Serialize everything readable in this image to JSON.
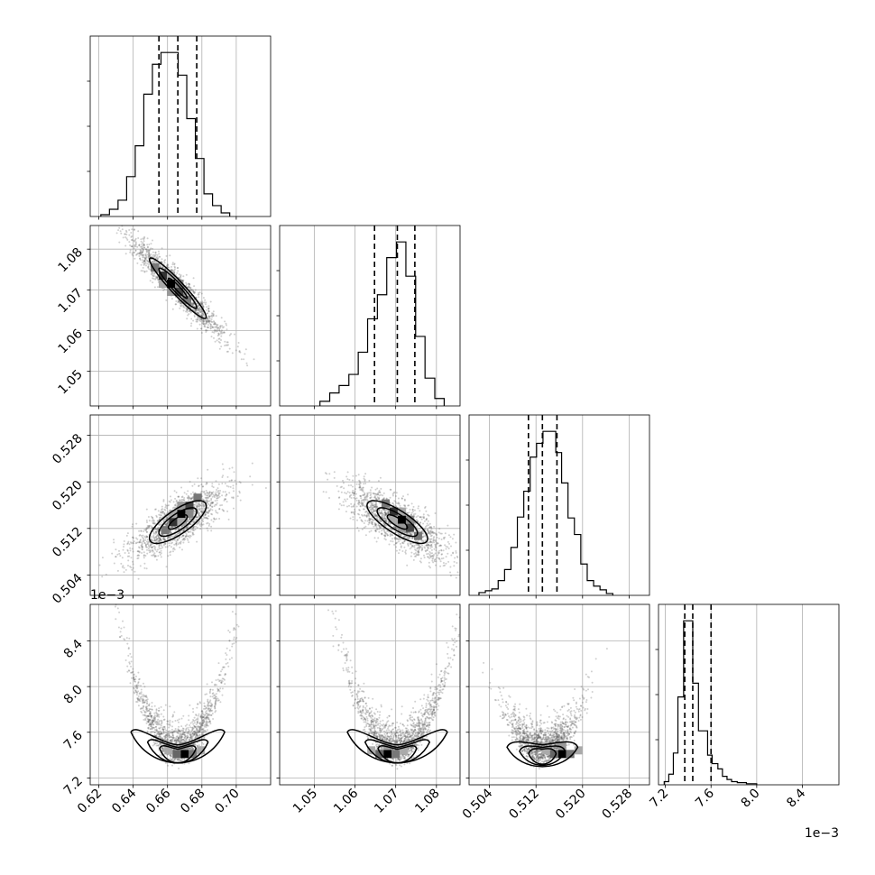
{
  "chart_data": {
    "type": "corner",
    "parameters": [
      {
        "range": [
          0.615,
          0.72
        ],
        "ticks": [
          0.62,
          0.64,
          0.66,
          0.68,
          0.7
        ],
        "tick_labels": [
          "0.62",
          "0.64",
          "0.66",
          "0.68",
          "0.70"
        ],
        "quantiles": [
          0.655,
          0.666,
          0.677
        ],
        "offset_label": ""
      },
      {
        "range": [
          1.0415,
          1.0858
        ],
        "ticks": [
          1.05,
          1.06,
          1.07,
          1.08
        ],
        "tick_labels": [
          "1.05",
          "1.06",
          "1.07",
          "1.08"
        ],
        "quantiles": [
          1.0648,
          1.0704,
          1.0747
        ],
        "offset_label": ""
      },
      {
        "range": [
          0.5005,
          0.5315
        ],
        "ticks": [
          0.504,
          0.512,
          0.52,
          0.528
        ],
        "tick_labels": [
          "0.504",
          "0.512",
          "0.520",
          "0.528"
        ],
        "quantiles": [
          0.5107,
          0.5131,
          0.5156
        ],
        "offset_label": ""
      },
      {
        "range": [
          7.14,
          8.72
        ],
        "ticks": [
          7.2,
          7.6,
          8.0,
          8.4
        ],
        "tick_labels": [
          "7.2",
          "7.6",
          "8.0",
          "8.4"
        ],
        "quantiles": [
          7.37,
          7.44,
          7.6
        ],
        "offset_label": "1e−3"
      }
    ],
    "histograms": [
      {
        "bin_edges": [
          0.6212,
          0.6262,
          0.6312,
          0.6362,
          0.6412,
          0.6462,
          0.6512,
          0.6562,
          0.6612,
          0.6662,
          0.6712,
          0.6762,
          0.6812,
          0.6862,
          0.6912,
          0.6962
        ],
        "counts": [
          2,
          8,
          18,
          44,
          78,
          135,
          168,
          181,
          181,
          156,
          108,
          64,
          25,
          12,
          4
        ]
      },
      {
        "bin_edges": [
          1.0514,
          1.0538,
          1.0561,
          1.0585,
          1.0608,
          1.0631,
          1.0655,
          1.0678,
          1.0702,
          1.0725,
          1.0749,
          1.0772,
          1.0796,
          1.0819
        ],
        "counts": [
          5,
          14,
          22,
          34,
          58,
          94,
          120,
          160,
          177,
          140,
          75,
          30,
          8
        ]
      },
      {
        "bin_edges": [
          0.5022,
          0.5033,
          0.5044,
          0.5055,
          0.5066,
          0.5077,
          0.5088,
          0.5099,
          0.511,
          0.5121,
          0.5132,
          0.5143,
          0.5154,
          0.5164,
          0.5175,
          0.5186,
          0.5197,
          0.5208,
          0.5219,
          0.523,
          0.5241,
          0.5252
        ],
        "counts": [
          3,
          5,
          7,
          16,
          28,
          52,
          85,
          113,
          150,
          165,
          178,
          178,
          155,
          122,
          84,
          66,
          34,
          16,
          10,
          6,
          2
        ]
      },
      {
        "bin_edges": [
          7.19,
          7.23,
          7.27,
          7.31,
          7.36,
          7.4,
          7.44,
          7.49,
          7.53,
          7.57,
          7.61,
          7.66,
          7.7,
          7.74,
          7.78,
          7.83,
          7.87,
          7.91,
          7.96,
          8.0
        ],
        "counts": [
          3,
          10,
          30,
          83,
          155,
          155,
          96,
          51,
          51,
          28,
          20,
          15,
          8,
          5,
          3,
          2,
          2,
          1,
          1
        ]
      }
    ],
    "contours_2d": [
      {
        "x": 0,
        "y": 1,
        "correlation": -0.95,
        "peak": [
          0.662,
          1.0715
        ]
      },
      {
        "x": 0,
        "y": 2,
        "correlation": 0.75,
        "peak": [
          0.668,
          0.5145
        ]
      },
      {
        "x": 1,
        "y": 2,
        "correlation": -0.78,
        "peak": [
          1.0715,
          0.5135
        ]
      },
      {
        "x": 0,
        "y": 3,
        "shape": "banana",
        "peak": [
          0.67,
          7.41
        ]
      },
      {
        "x": 1,
        "y": 3,
        "shape": "banana",
        "peak": [
          1.068,
          7.41
        ]
      },
      {
        "x": 2,
        "y": 3,
        "shape": "skewed",
        "peak": [
          0.5165,
          7.41
        ]
      }
    ],
    "grid": true,
    "title": "",
    "xlabel": "",
    "ylabel": ""
  }
}
